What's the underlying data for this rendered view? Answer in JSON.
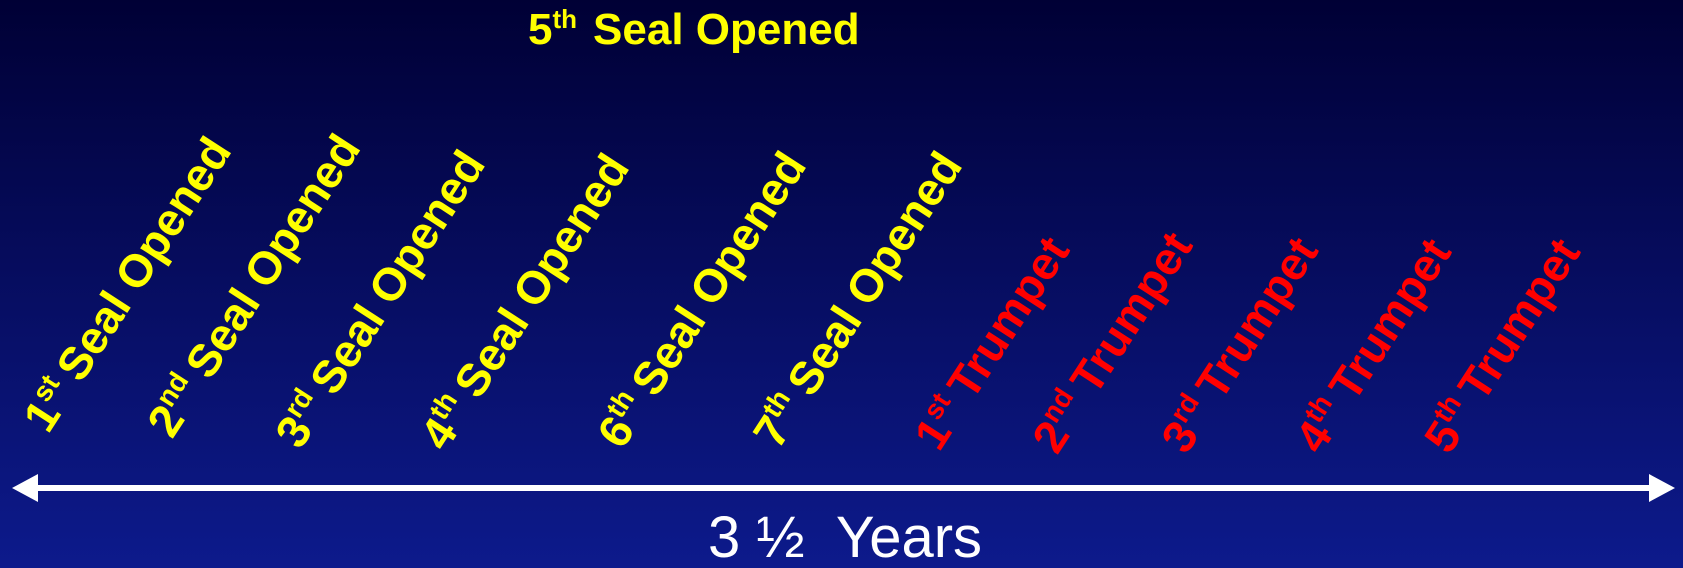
{
  "title": {
    "number": "5",
    "suffix": "th",
    "text": "Seal Opened"
  },
  "seals": [
    {
      "number": "1",
      "suffix": "st",
      "text": "Seal Opened"
    },
    {
      "number": "2",
      "suffix": "nd",
      "text": "Seal Opened"
    },
    {
      "number": "3",
      "suffix": "rd",
      "text": "Seal Opened"
    },
    {
      "number": "4",
      "suffix": "th",
      "text": "Seal Opened"
    },
    {
      "number": "6",
      "suffix": "th",
      "text": "Seal Opened"
    },
    {
      "number": "7",
      "suffix": "th",
      "text": "Seal Opened"
    }
  ],
  "trumpets": [
    {
      "number": "1",
      "suffix": "st",
      "text": "Trumpet"
    },
    {
      "number": "2",
      "suffix": "nd",
      "text": "Trumpet"
    },
    {
      "number": "3",
      "suffix": "rd",
      "text": "Trumpet"
    },
    {
      "number": "4",
      "suffix": "th",
      "text": "Trumpet"
    },
    {
      "number": "5",
      "suffix": "th",
      "text": "Trumpet"
    }
  ],
  "timeline": "3 ½  Years"
}
